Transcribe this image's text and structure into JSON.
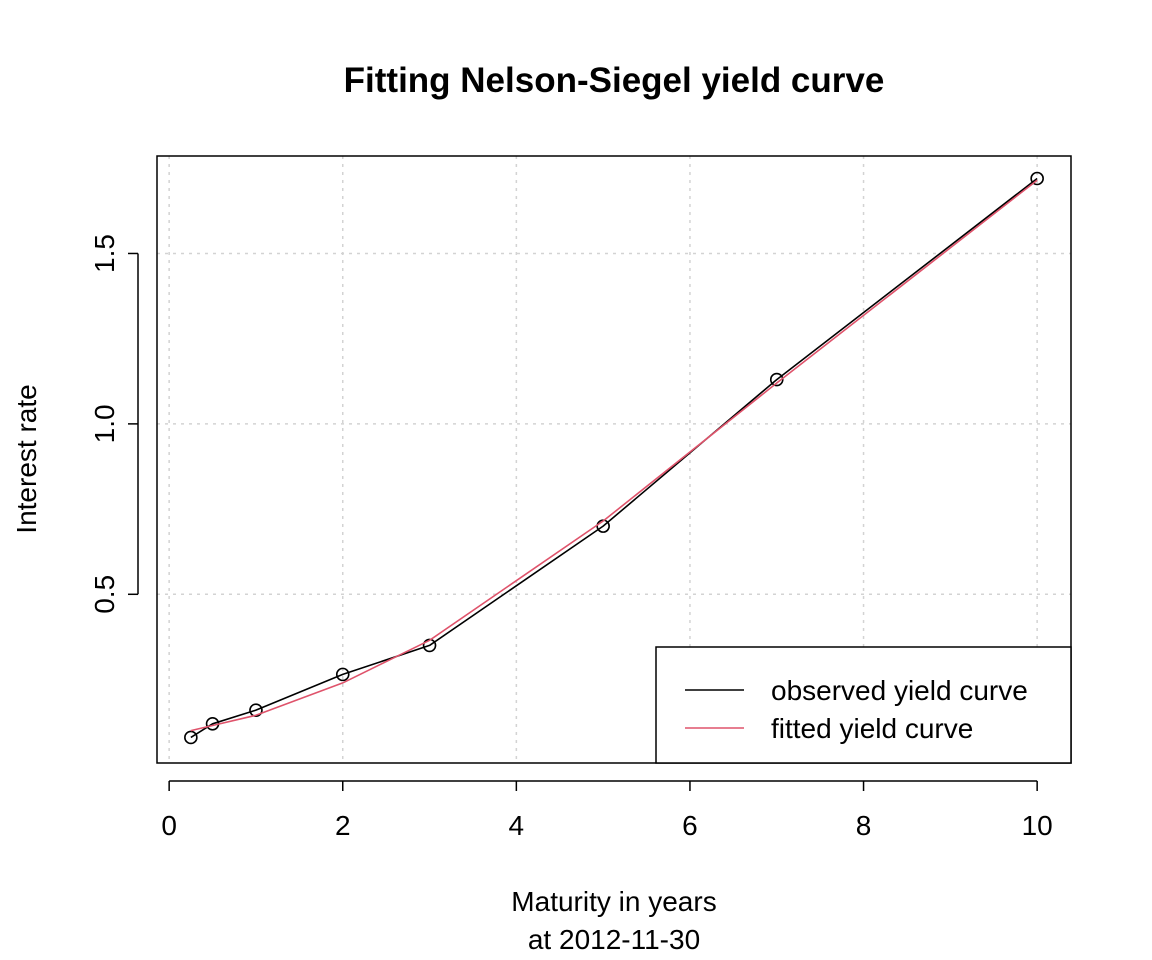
{
  "chart_data": {
    "type": "line",
    "title": "Fitting Nelson-Siegel yield curve",
    "xlabel": "Maturity in years",
    "xlabel_sub": "at 2012-11-30",
    "ylabel": "Interest rate",
    "xlim": [
      0,
      10
    ],
    "ylim": [
      0.05,
      1.75
    ],
    "x_ticks": [
      0,
      2,
      4,
      6,
      8,
      10
    ],
    "y_ticks": [
      0.5,
      1.0,
      1.5
    ],
    "x_tick_labels": [
      "0",
      "2",
      "4",
      "6",
      "8",
      "10"
    ],
    "y_tick_labels": [
      "0.5",
      "1.0",
      "1.5"
    ],
    "grid": true,
    "legend_position": "bottom-right",
    "series": [
      {
        "name": "observed yield curve",
        "color": "#000000",
        "points_marked": true,
        "x": [
          0.25,
          0.5,
          1,
          2,
          3,
          5,
          7,
          10
        ],
        "y": [
          0.08,
          0.12,
          0.16,
          0.265,
          0.35,
          0.7,
          1.13,
          1.72
        ]
      },
      {
        "name": "fitted yield curve",
        "color": "#DF536B",
        "points_marked": false,
        "x": [
          0.25,
          0.5,
          1,
          2,
          3,
          5,
          7,
          10
        ],
        "y": [
          0.1,
          0.115,
          0.145,
          0.24,
          0.365,
          0.715,
          1.12,
          1.715
        ]
      }
    ]
  }
}
